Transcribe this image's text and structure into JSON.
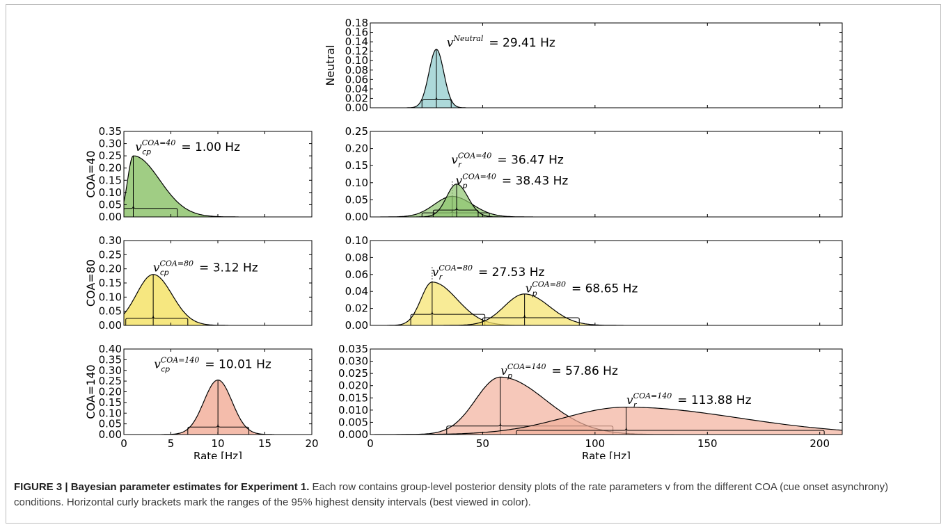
{
  "caption": {
    "label": "FIGURE 3 | Bayesian parameter estimates for Experiment 1.",
    "text": "Each row contains group-level posterior density plots of the rate parameters v from the different COA (cue onset asynchrony) conditions. Horizontal curly brackets mark the ranges of the 95% highest density intervals (best viewed in color)."
  },
  "colors": {
    "neutral": "#9fd2d3",
    "coa40": "#8fc46f",
    "coa80": "#f5e36a",
    "coa140": "#f2b09c"
  },
  "chart_data": [
    {
      "id": "neutral",
      "type": "area",
      "ylabel": "Neutral",
      "xlim": [
        0,
        210
      ],
      "ylim": [
        0,
        0.18
      ],
      "yticks": [
        "0.00",
        "0.02",
        "0.04",
        "0.06",
        "0.08",
        "0.10",
        "0.12",
        "0.14",
        "0.16",
        "0.18"
      ],
      "series": [
        {
          "mode": 29.41,
          "peak": 0.124,
          "sdl": 3.3,
          "sdr": 3.3,
          "hdi": [
            23,
            36
          ],
          "hdi_level": 0.017,
          "color": "#9fd2d3",
          "label_sym": "v",
          "label_sup": "Neutral",
          "label_sub": "",
          "label_val": "= 29.41 Hz",
          "label_at": [
            34,
            0.13
          ]
        }
      ]
    },
    {
      "id": "coa40-left",
      "type": "area",
      "ylabel": "COA=40",
      "xlim": [
        0,
        20
      ],
      "ylim": [
        0,
        0.35
      ],
      "yticks": [
        "0.00",
        "0.05",
        "0.10",
        "0.15",
        "0.20",
        "0.25",
        "0.30",
        "0.35"
      ],
      "series": [
        {
          "mode": 1.0,
          "peak": 0.25,
          "sdl": 0.6,
          "sdr": 2.8,
          "hdi": [
            0,
            5.7
          ],
          "hdi_level": 0.035,
          "color": "#8fc46f",
          "label_sym": "v",
          "label_sup": "COA=40",
          "label_sub": "cp",
          "label_val": "= 1.00 Hz",
          "label_at": [
            1.2,
            0.27
          ]
        }
      ]
    },
    {
      "id": "coa40-right",
      "type": "area",
      "xlim": [
        0,
        210
      ],
      "ylim": [
        0,
        0.25
      ],
      "yticks": [
        "0.00",
        "0.05",
        "0.10",
        "0.15",
        "0.20",
        "0.25"
      ],
      "series": [
        {
          "mode": 36.47,
          "peak": 0.06,
          "sdl": 8,
          "sdr": 9,
          "hdi": [
            23,
            53
          ],
          "hdi_level": 0.012,
          "color": "#8fc46f",
          "dotted": true,
          "label_sym": "v",
          "label_sup": "COA=40",
          "label_sub": "r",
          "label_val": "= 36.47 Hz",
          "label_at": [
            36,
            0.155
          ]
        },
        {
          "mode": 38.43,
          "peak": 0.096,
          "sdl": 4.5,
          "sdr": 5,
          "hdi": [
            28,
            48
          ],
          "hdi_level": 0.02,
          "color": "#8fc46f",
          "label_sym": "v",
          "label_sup": "COA=40",
          "label_sub": "p",
          "label_val": "= 38.43 Hz",
          "label_at": [
            38,
            0.095
          ]
        }
      ]
    },
    {
      "id": "coa80-left",
      "type": "area",
      "ylabel": "COA=80",
      "xlim": [
        0,
        20
      ],
      "ylim": [
        0,
        0.3
      ],
      "yticks": [
        "0.00",
        "0.05",
        "0.10",
        "0.15",
        "0.20",
        "0.25",
        "0.30"
      ],
      "series": [
        {
          "mode": 3.12,
          "peak": 0.18,
          "sdl": 1.8,
          "sdr": 2.0,
          "hdi": [
            0.2,
            6.8
          ],
          "hdi_level": 0.025,
          "color": "#f5e36a",
          "label_sym": "v",
          "label_sup": "COA=80",
          "label_sub": "cp",
          "label_val": "= 3.12 Hz",
          "label_at": [
            3.1,
            0.19
          ]
        }
      ]
    },
    {
      "id": "coa80-right",
      "type": "area",
      "xlim": [
        0,
        210
      ],
      "ylim": [
        0,
        0.1
      ],
      "yticks": [
        "0.00",
        "0.02",
        "0.04",
        "0.06",
        "0.08",
        "0.10"
      ],
      "series": [
        {
          "mode": 27.53,
          "peak": 0.051,
          "sdl": 5,
          "sdr": 11,
          "hdi": [
            18,
            51
          ],
          "hdi_level": 0.013,
          "color": "#f5e36a",
          "dotted": true,
          "label_sym": "v",
          "label_sup": "COA=80",
          "label_sub": "r",
          "label_val": "= 27.53 Hz",
          "label_at": [
            27.5,
            0.058
          ]
        },
        {
          "mode": 68.65,
          "peak": 0.037,
          "sdl": 9,
          "sdr": 11,
          "hdi": [
            50,
            93
          ],
          "hdi_level": 0.009,
          "color": "#f5e36a",
          "label_sym": "v",
          "label_sup": "COA=80",
          "label_sub": "p",
          "label_val": "= 68.65 Hz",
          "label_at": [
            69,
            0.039
          ]
        }
      ]
    },
    {
      "id": "coa140-left",
      "type": "area",
      "ylabel": "COA=140",
      "xlim": [
        0,
        20
      ],
      "ylim": [
        0,
        0.4
      ],
      "yticks": [
        "0.00",
        "0.05",
        "0.10",
        "0.15",
        "0.20",
        "0.25",
        "0.30",
        "0.35",
        "0.40"
      ],
      "series": [
        {
          "mode": 10.01,
          "peak": 0.255,
          "sdl": 1.5,
          "sdr": 1.5,
          "hdi": [
            6.8,
            13.3
          ],
          "hdi_level": 0.035,
          "color": "#f2b09c",
          "label_sym": "v",
          "label_sup": "COA=140",
          "label_sub": "cp",
          "label_val": "= 10.01 Hz",
          "label_at": [
            3.2,
            0.31
          ]
        }
      ],
      "xlabel": "Rate [Hz]",
      "xticks": [
        "0",
        "5",
        "10",
        "15",
        "20"
      ]
    },
    {
      "id": "coa140-right",
      "type": "area",
      "xlim": [
        0,
        210
      ],
      "ylim": [
        0,
        0.035
      ],
      "yticks": [
        "0.000",
        "0.005",
        "0.010",
        "0.015",
        "0.020",
        "0.025",
        "0.030",
        "0.035"
      ],
      "series": [
        {
          "mode": 57.86,
          "peak": 0.0235,
          "sdl": 11,
          "sdr": 20,
          "hdi": [
            34,
            108
          ],
          "hdi_level": 0.0035,
          "color": "#f2b09c",
          "label_sym": "v",
          "label_sup": "COA=140",
          "label_sub": "p",
          "label_val": "= 57.86 Hz",
          "label_at": [
            58,
            0.0245
          ]
        },
        {
          "mode": 113.88,
          "peak": 0.0112,
          "sdl": 28,
          "sdr": 50,
          "hdi": [
            65,
            202
          ],
          "hdi_level": 0.0017,
          "color": "#f2b09c",
          "label_sym": "v",
          "label_sup": "COA=140",
          "label_sub": "r",
          "label_val": "= 113.88 Hz",
          "label_at": [
            114,
            0.0125
          ]
        }
      ],
      "xlabel": "Rate [Hz]",
      "xticks": [
        "0",
        "50",
        "100",
        "150",
        "200"
      ]
    }
  ]
}
